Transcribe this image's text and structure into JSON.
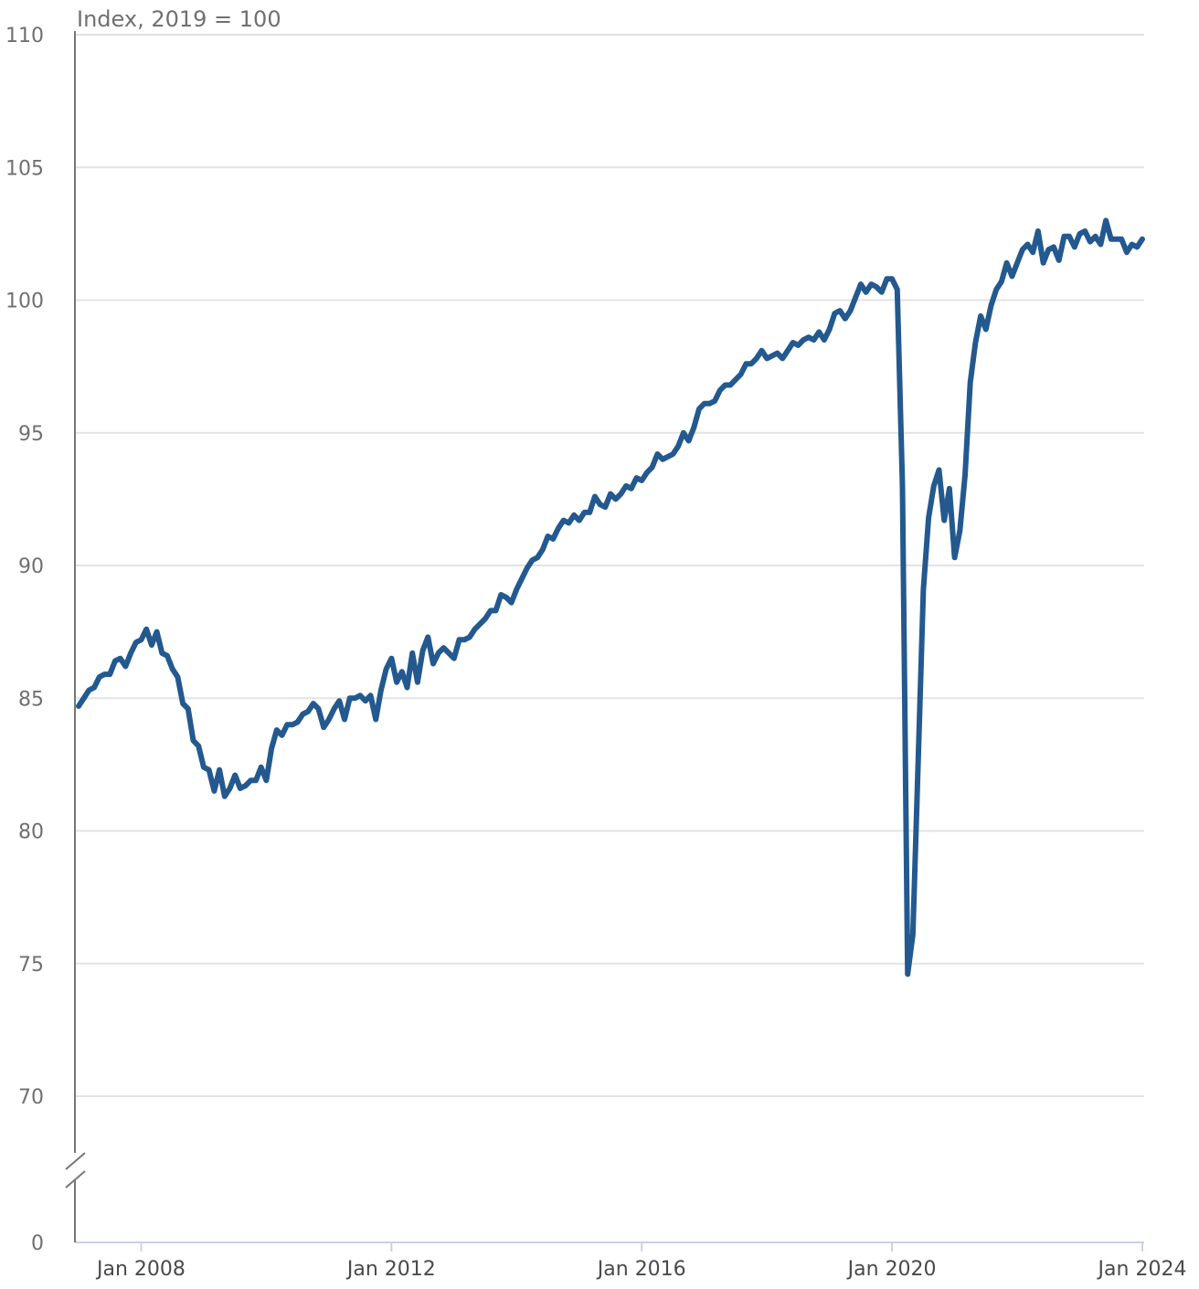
{
  "chart_data": {
    "type": "line",
    "title": "",
    "unit_label": "Index, 2019 = 100",
    "xlabel": "",
    "ylabel": "",
    "y_ticks": [
      110,
      105,
      100,
      95,
      90,
      85,
      80,
      75,
      70
    ],
    "y_zero_label": "0",
    "y_axis_break": true,
    "ylim": [
      70,
      110
    ],
    "x_ticks": [
      "Jan 2008",
      "Jan 2012",
      "Jan 2016",
      "Jan 2020",
      "Jan 2024"
    ],
    "x_start": "2007-01",
    "x_end": "2024-01",
    "grid": true,
    "legend": "none",
    "line_color": "#23598f",
    "series": [
      {
        "values": [
          84.7,
          85.0,
          85.3,
          85.4,
          85.8,
          85.9,
          85.9,
          86.4,
          86.5,
          86.2,
          86.7,
          87.1,
          87.2,
          87.6,
          87.0,
          87.5,
          86.7,
          86.6,
          86.1,
          85.8,
          84.8,
          84.6,
          83.4,
          83.2,
          82.4,
          82.3,
          81.5,
          82.3,
          81.3,
          81.6,
          82.1,
          81.6,
          81.7,
          81.9,
          81.9,
          82.4,
          81.9,
          83.1,
          83.8,
          83.6,
          84.0,
          84.0,
          84.1,
          84.4,
          84.5,
          84.8,
          84.6,
          83.9,
          84.2,
          84.6,
          84.9,
          84.2,
          85.0,
          85.0,
          85.1,
          84.9,
          85.1,
          84.2,
          85.3,
          86.1,
          86.5,
          85.6,
          86.0,
          85.4,
          86.7,
          85.6,
          86.8,
          87.3,
          86.3,
          86.7,
          86.9,
          86.7,
          86.5,
          87.2,
          87.2,
          87.3,
          87.6,
          87.8,
          88.0,
          88.3,
          88.3,
          88.9,
          88.8,
          88.6,
          89.1,
          89.5,
          89.9,
          90.2,
          90.3,
          90.6,
          91.1,
          91.0,
          91.4,
          91.7,
          91.6,
          91.9,
          91.7,
          92.0,
          92.0,
          92.6,
          92.3,
          92.2,
          92.7,
          92.5,
          92.7,
          93.0,
          92.9,
          93.3,
          93.2,
          93.5,
          93.7,
          94.2,
          94.0,
          94.1,
          94.2,
          94.5,
          95.0,
          94.7,
          95.2,
          95.9,
          96.1,
          96.1,
          96.2,
          96.6,
          96.8,
          96.8,
          97.0,
          97.2,
          97.6,
          97.6,
          97.8,
          98.1,
          97.8,
          97.9,
          98.0,
          97.8,
          98.1,
          98.4,
          98.3,
          98.5,
          98.6,
          98.5,
          98.8,
          98.5,
          98.9,
          99.5,
          99.6,
          99.3,
          99.6,
          100.1,
          100.6,
          100.3,
          100.6,
          100.5,
          100.3,
          100.8,
          100.8,
          100.4,
          93.0,
          74.6,
          76.1,
          82.5,
          89.1,
          91.8,
          93.0,
          93.6,
          91.7,
          92.9,
          90.3,
          91.3,
          93.4,
          96.9,
          98.4,
          99.4,
          98.9,
          99.8,
          100.4,
          100.7,
          101.4,
          100.9,
          101.4,
          101.9,
          102.1,
          101.8,
          102.6,
          101.4,
          101.9,
          102.0,
          101.5,
          102.4,
          102.4,
          102.0,
          102.5,
          102.6,
          102.2,
          102.4,
          102.1,
          103.0,
          102.3,
          102.3,
          102.3,
          101.8,
          102.1,
          102.0,
          102.3
        ]
      }
    ]
  }
}
